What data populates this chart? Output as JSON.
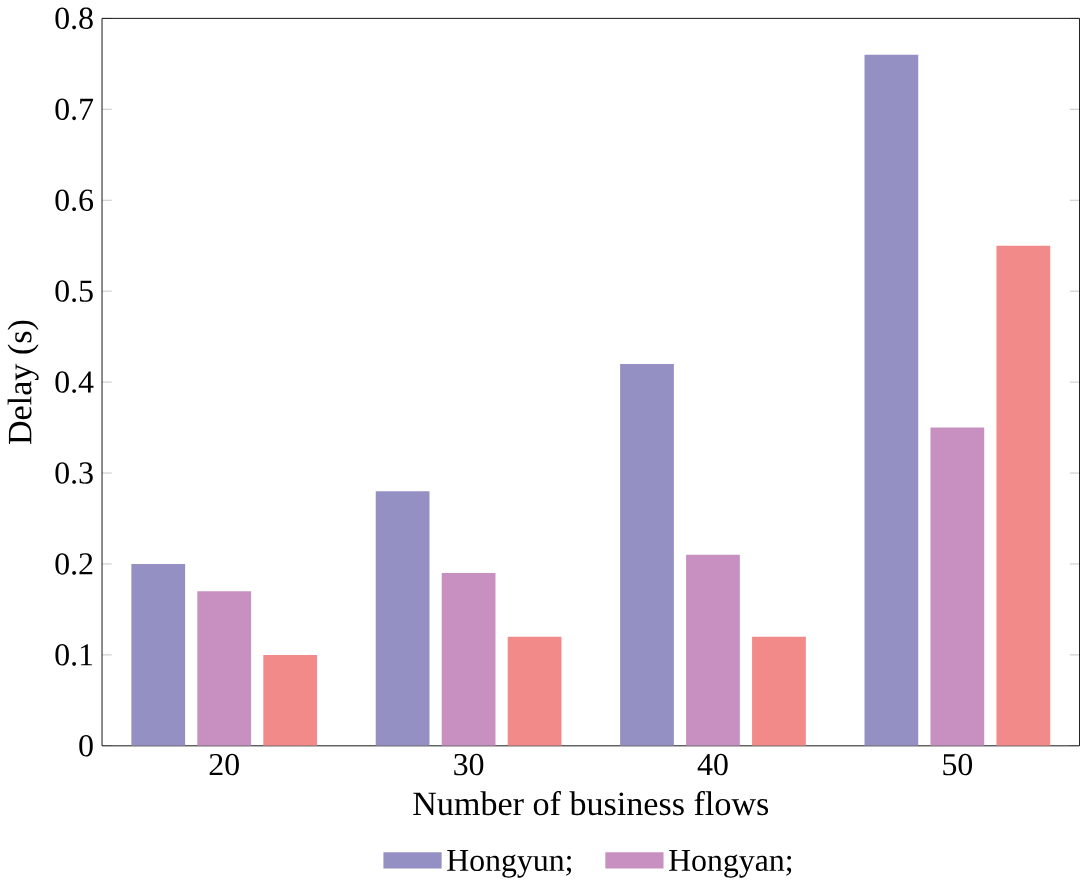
{
  "chart_data": {
    "type": "bar",
    "xlabel": "Number of business flows",
    "ylabel": "Delay (s)",
    "categories": [
      "20",
      "30",
      "40",
      "50"
    ],
    "series": [
      {
        "name": "Hongyun;",
        "color": "#9590c4",
        "values": [
          0.2,
          0.28,
          0.42,
          0.76
        ]
      },
      {
        "name": "Hongyan;",
        "color": "#c890c0",
        "values": [
          0.17,
          0.19,
          0.21,
          0.35
        ]
      },
      {
        "color": "#f28a8a",
        "values": [
          0.1,
          0.12,
          0.12,
          0.55
        ]
      }
    ],
    "ylim": [
      0,
      0.8
    ],
    "yticks": [
      0,
      0.1,
      0.2,
      0.3,
      0.4,
      0.5,
      0.6,
      0.7,
      0.8
    ],
    "grid": false,
    "legend": "bottom"
  }
}
